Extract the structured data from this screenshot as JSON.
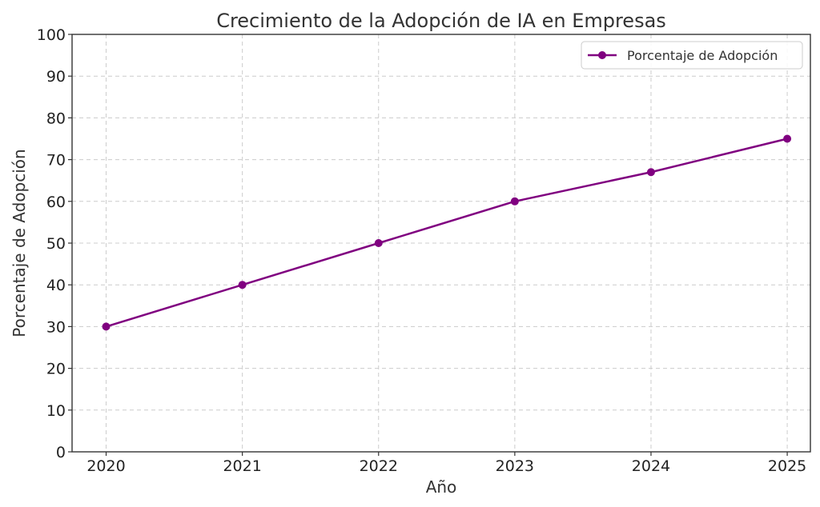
{
  "chart_data": {
    "type": "line",
    "title": "Crecimiento de la Adopción de IA en Empresas",
    "xlabel": "Año",
    "ylabel": "Porcentaje de Adopción",
    "x": [
      2020,
      2021,
      2022,
      2023,
      2024,
      2025
    ],
    "x_tick_labels": [
      "2020",
      "2021",
      "2022",
      "2023",
      "2024",
      "2025"
    ],
    "y_ticks": [
      0,
      10,
      20,
      30,
      40,
      50,
      60,
      70,
      80,
      90,
      100
    ],
    "ylim": [
      0,
      100
    ],
    "xlim": [
      2019.75,
      2025.17
    ],
    "grid": true,
    "legend_position": "top-right",
    "series": [
      {
        "name": "Porcentaje de Adopción",
        "color": "#800080",
        "marker": "circle",
        "values": [
          30,
          40,
          50,
          60,
          67,
          75
        ]
      }
    ]
  }
}
